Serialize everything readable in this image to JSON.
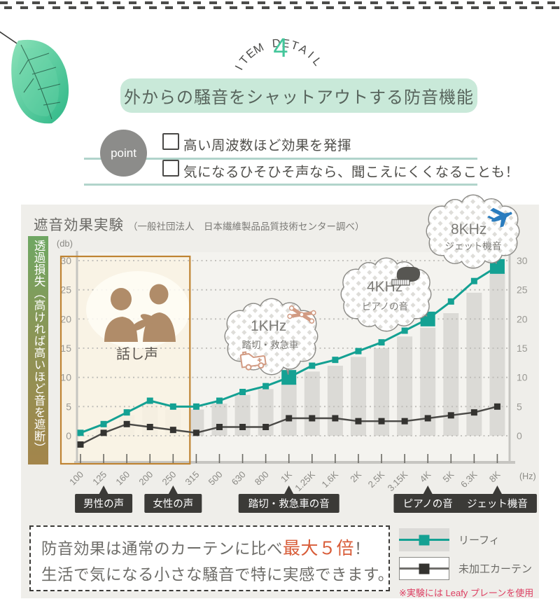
{
  "header": {
    "item_detail_label": "ITEM DETAIL",
    "item_detail_number": "4",
    "banner_title": "外からの騒音をシャットアウトする防音機能",
    "accent_color": "#44c69b"
  },
  "point": {
    "label": "point",
    "items": [
      "高い周波数ほど効果を発揮",
      "気になるひそひそ声なら、聞こえにくくなることも！"
    ]
  },
  "chart_panel": {
    "title": "遮音効果実験",
    "title_note": "（一般社団法人　日本繊維製品品質技術センター調べ）",
    "y_axis_label": "透過損失（高ければ高いほど音を遮断）"
  },
  "chart_data": {
    "type": "line",
    "title": "遮音効果実験",
    "xlabel": "(Hz)",
    "ylabel": "(db)",
    "categories": [
      "100",
      "125",
      "160",
      "200",
      "250",
      "315",
      "500",
      "630",
      "800",
      "1K",
      "1.25K",
      "1.6K",
      "2K",
      "2.5K",
      "3.15K",
      "4K",
      "5K",
      "6.3K",
      "8K"
    ],
    "y_ticks": [
      0,
      5,
      10,
      15,
      20,
      25,
      30
    ],
    "ylim": [
      -4,
      33
    ],
    "grid": "dotted-horizontal",
    "series": [
      {
        "name": "リーフィ",
        "color": "#14a193",
        "values": [
          0.5,
          2,
          4,
          6,
          5,
          5,
          6,
          7.5,
          8.5,
          10,
          12,
          13,
          14.5,
          16,
          18,
          20,
          23,
          26.5,
          29
        ],
        "emphasis": [
          "1K",
          "4K",
          "8K"
        ]
      },
      {
        "name": "未加工カーテン",
        "color": "#4b4a47",
        "marker_color": "#343330",
        "values": [
          -1.5,
          0.5,
          2,
          1.5,
          1,
          0.5,
          1.5,
          1.5,
          1.5,
          3,
          3,
          3,
          2.5,
          2.5,
          2.5,
          3,
          3.5,
          4,
          5
        ]
      }
    ],
    "bars": {
      "color": "#dbdad6",
      "values": [
        0,
        1.5,
        3.5,
        5.5,
        4.5,
        4.5,
        5.5,
        7,
        8,
        9,
        11,
        12,
        13.5,
        15,
        17,
        18.5,
        21,
        24.5,
        28
      ]
    },
    "annotations": {
      "talk_region": {
        "label": "話し声",
        "from": "100",
        "to": "250",
        "border_color": "#bf8433"
      },
      "bubbles": [
        {
          "freq_label": "1KHz",
          "desc": "踏切・救急車",
          "icons": [
            "railroad-crossing-icon",
            "ambulance-icon"
          ],
          "target": "1K"
        },
        {
          "freq_label": "4KHz",
          "desc": "ピアノの音",
          "icons": [
            "piano-icon"
          ],
          "target": "4K"
        },
        {
          "freq_label": "8KHz",
          "desc": "ジェット機音",
          "icons": [
            "airplane-icon"
          ],
          "target": "8K"
        }
      ],
      "axis_badges": [
        {
          "label": "男性の声",
          "target": "125"
        },
        {
          "label": "女性の声",
          "target": "250"
        },
        {
          "label": "踏切・救急車の音",
          "target": "1K"
        },
        {
          "label": "ピアノの音",
          "target": "4K"
        },
        {
          "label": "ジェット機音",
          "target": "8K"
        }
      ]
    },
    "legend_position": "bottom-right"
  },
  "claim": {
    "line1_prefix": "防音効果は通常のカーテンに比べ",
    "line1_highlight": "最大５倍",
    "line1_suffix": "！",
    "line2": "生活で気になる小さな騒音で特に実感できます。",
    "highlight_color": "#d85c38"
  },
  "legend": {
    "items": [
      {
        "label": "リーフィ",
        "color": "#14a193"
      },
      {
        "label": "未加工カーテン",
        "color": "#343330"
      }
    ],
    "note": "※実験には Leafy プレーンを使用",
    "note_color": "#dd3f63"
  }
}
